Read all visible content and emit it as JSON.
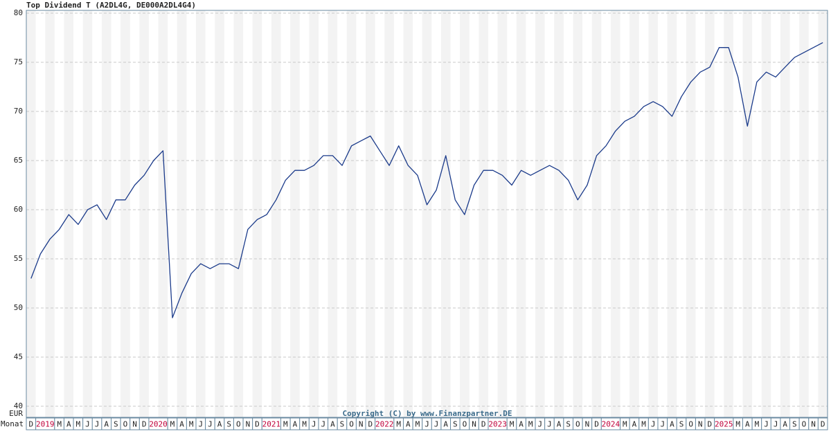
{
  "chart_data": {
    "type": "line",
    "title": "Top Dividend T (A2DL4G, DE000A2DL4G4)",
    "y_unit_label": "EUR",
    "x_axis_label": "Monat",
    "annotation": "Copyright (C) by www.Finanzpartner.DE",
    "categories": [
      "D",
      "2019",
      null,
      "M",
      "A",
      "M",
      "J",
      "J",
      "A",
      "S",
      "O",
      "N",
      "D",
      "2020",
      null,
      "M",
      "A",
      "M",
      "J",
      "J",
      "A",
      "S",
      "O",
      "N",
      "D",
      "2021",
      null,
      "M",
      "A",
      "M",
      "J",
      "J",
      "A",
      "S",
      "O",
      "N",
      "D",
      "2022",
      null,
      "M",
      "A",
      "M",
      "J",
      "J",
      "A",
      "S",
      "O",
      "N",
      "D",
      "2023",
      null,
      "M",
      "A",
      "M",
      "J",
      "J",
      "A",
      "S",
      "O",
      "N",
      "D",
      "2024",
      null,
      "M",
      "A",
      "M",
      "J",
      "J",
      "A",
      "S",
      "O",
      "N",
      "D",
      "2025",
      null,
      "M",
      "A",
      "M",
      "J",
      "J",
      "A",
      "S",
      "O",
      "N",
      "D"
    ],
    "series": [
      {
        "name": "Top Dividend T",
        "color": "#1a3a8a",
        "values": [
          53.0,
          55.5,
          57.0,
          58.0,
          59.5,
          58.5,
          60.0,
          60.5,
          59.0,
          61.0,
          61.0,
          62.5,
          63.5,
          65.0,
          66.0,
          49.0,
          51.5,
          53.5,
          54.5,
          54.0,
          54.5,
          54.5,
          54.0,
          58.0,
          59.0,
          59.5,
          61.0,
          63.0,
          64.0,
          64.0,
          64.5,
          65.5,
          65.5,
          64.5,
          66.5,
          67.0,
          67.5,
          66.0,
          64.5,
          66.5,
          64.5,
          63.5,
          60.5,
          62.0,
          65.5,
          61.0,
          59.5,
          62.5,
          64.0,
          64.0,
          63.5,
          62.5,
          64.0,
          63.5,
          64.0,
          64.5,
          64.0,
          63.0,
          61.0,
          62.5,
          65.5,
          66.5,
          68.0,
          69.0,
          69.5,
          70.5,
          71.0,
          70.5,
          69.5,
          71.5,
          73.0,
          74.0,
          74.5,
          76.5,
          76.5,
          73.5,
          68.5,
          73.0,
          74.0,
          73.5,
          74.5,
          75.5,
          76.0,
          76.5,
          77.0
        ]
      }
    ],
    "ylim": [
      40,
      80
    ],
    "yticks": [
      40,
      45,
      50,
      55,
      60,
      65,
      70,
      75,
      80
    ],
    "grid": true,
    "year_label_color": "#c0003a"
  }
}
